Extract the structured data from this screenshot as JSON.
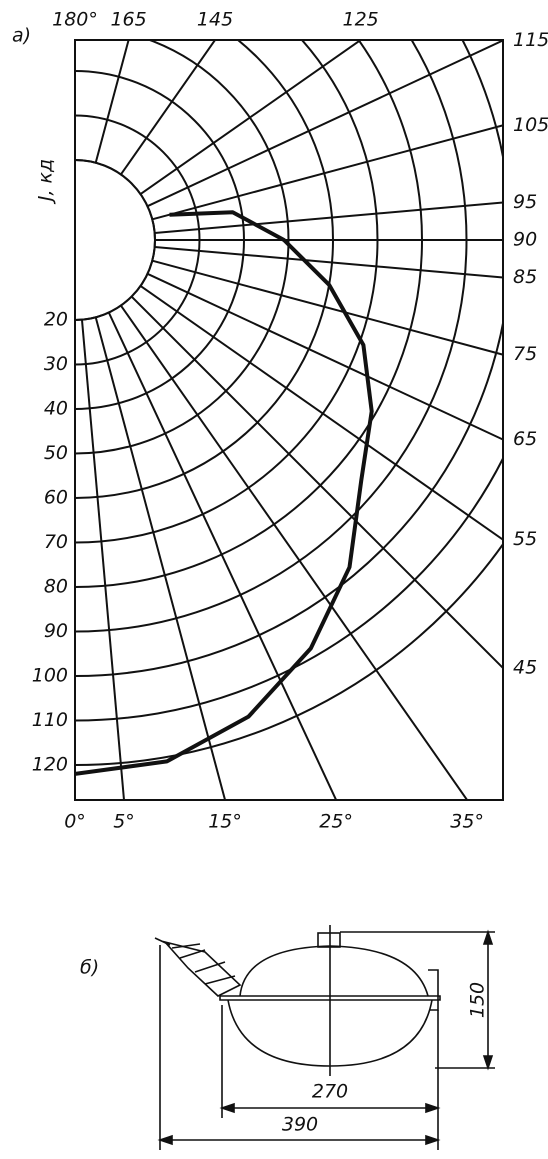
{
  "chart_data": {
    "type": "polar",
    "panel_label": "а)",
    "ylabel": "J, кд",
    "xlim": [
      0,
      180
    ],
    "ylim": [
      20,
      120
    ],
    "xticks": [
      {
        "value": 0,
        "label": "0°"
      },
      {
        "value": 5,
        "label": "5°"
      },
      {
        "value": 15,
        "label": "15°"
      },
      {
        "value": 25,
        "label": "25°"
      },
      {
        "value": 35,
        "label": "35°"
      },
      45,
      55,
      65,
      75,
      85,
      90,
      95,
      105,
      115,
      125,
      145,
      165,
      {
        "value": 180,
        "label": "180°"
      }
    ],
    "yticks": [
      20,
      30,
      40,
      50,
      60,
      70,
      80,
      90,
      100,
      110,
      120
    ],
    "grid": true,
    "color": "#111111",
    "x": [
      0,
      10,
      20,
      30,
      40,
      50,
      60,
      70,
      80,
      90,
      100,
      105
    ],
    "values": [
      122,
      121,
      116,
      108,
      98,
      86,
      79,
      71,
      60,
      49,
      38,
      24
    ]
  },
  "lamp": {
    "label": "б)",
    "dimensions": [
      "270",
      "390",
      "150"
    ]
  }
}
